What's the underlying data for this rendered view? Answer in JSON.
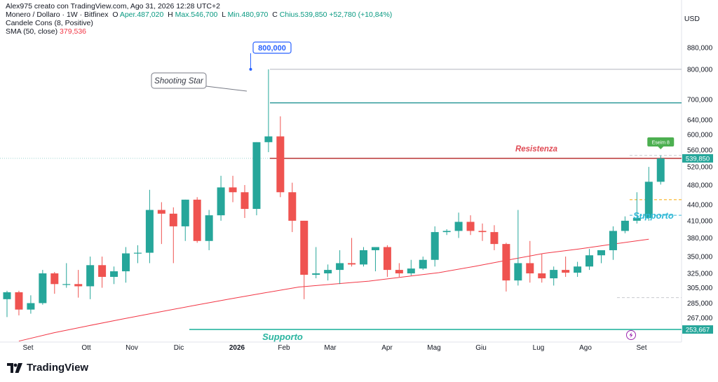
{
  "header": {
    "author_line": "Alex975 creato con TradingView.com, Ago 31, 2026 12:28 UTC+2",
    "symbol": "Monero / Dollaro · 1W · Bitfinex",
    "o_label": "O",
    "o_value": "Aper.487,020",
    "h_label": "H",
    "h_value": "Max.546,700",
    "l_label": "L",
    "l_value": "Min.480,970",
    "c_label": "C",
    "c_value": "Chius.539,850",
    "change": "+52,780 (+10,84%)",
    "indicator1": "Candele Cons (8, Positive)",
    "indicator2_label": "SMA (50, close)",
    "indicator2_value": "379,536"
  },
  "currency": "USD",
  "watermark": "TradingView",
  "colors": {
    "up": "#26a69a",
    "down": "#ef5350",
    "sma": "#f23645",
    "support": "#2ab5a0",
    "resistance": "#b22222",
    "annotation_blue": "#2962ff"
  },
  "chart_data": {
    "type": "candlestick",
    "scale": "log",
    "ylim": [
      240,
      960
    ],
    "y_ticks": [
      880000,
      800000,
      700000,
      640000,
      600000,
      560000,
      520000,
      480000,
      440000,
      410000,
      380000,
      350000,
      325000,
      305000,
      285000,
      267000
    ],
    "y_tick_labels": [
      "880,000",
      "800,000",
      "700,000",
      "640,000",
      "600,000",
      "560,000",
      "520,000",
      "480,000",
      "440,000",
      "410,000",
      "380,000",
      "350,000",
      "325,000",
      "305,000",
      "285,000",
      "267,000"
    ],
    "x_labels": [
      "Set",
      "Ott",
      "Nov",
      "Dic",
      "2026",
      "Feb",
      "Mar",
      "Apr",
      "Mag",
      "Giu",
      "Lug",
      "Ago",
      "Set"
    ],
    "candles": [
      {
        "o": 290,
        "h": 301,
        "l": 268,
        "c": 299
      },
      {
        "o": 299,
        "h": 301,
        "l": 270,
        "c": 277
      },
      {
        "o": 277,
        "h": 295,
        "l": 272,
        "c": 285
      },
      {
        "o": 285,
        "h": 330,
        "l": 283,
        "c": 325
      },
      {
        "o": 325,
        "h": 327,
        "l": 297,
        "c": 310
      },
      {
        "o": 310,
        "h": 340,
        "l": 305,
        "c": 310
      },
      {
        "o": 310,
        "h": 330,
        "l": 292,
        "c": 307
      },
      {
        "o": 307,
        "h": 350,
        "l": 290,
        "c": 337
      },
      {
        "o": 337,
        "h": 350,
        "l": 305,
        "c": 320
      },
      {
        "o": 320,
        "h": 335,
        "l": 310,
        "c": 328
      },
      {
        "o": 328,
        "h": 365,
        "l": 312,
        "c": 355
      },
      {
        "o": 355,
        "h": 368,
        "l": 340,
        "c": 356
      },
      {
        "o": 356,
        "h": 470,
        "l": 340,
        "c": 430
      },
      {
        "o": 430,
        "h": 445,
        "l": 370,
        "c": 423
      },
      {
        "o": 423,
        "h": 435,
        "l": 340,
        "c": 400
      },
      {
        "o": 400,
        "h": 450,
        "l": 375,
        "c": 450
      },
      {
        "o": 450,
        "h": 455,
        "l": 372,
        "c": 375
      },
      {
        "o": 375,
        "h": 430,
        "l": 360,
        "c": 420
      },
      {
        "o": 420,
        "h": 500,
        "l": 410,
        "c": 475
      },
      {
        "o": 475,
        "h": 500,
        "l": 445,
        "c": 465
      },
      {
        "o": 465,
        "h": 480,
        "l": 415,
        "c": 432
      },
      {
        "o": 432,
        "h": 580,
        "l": 420,
        "c": 580
      },
      {
        "o": 580,
        "h": 800,
        "l": 555,
        "c": 595
      },
      {
        "o": 595,
        "h": 650,
        "l": 455,
        "c": 465
      },
      {
        "o": 465,
        "h": 485,
        "l": 390,
        "c": 410
      },
      {
        "o": 410,
        "h": 410,
        "l": 290,
        "c": 323
      },
      {
        "o": 323,
        "h": 365,
        "l": 318,
        "c": 325
      },
      {
        "o": 325,
        "h": 338,
        "l": 315,
        "c": 330
      },
      {
        "o": 330,
        "h": 360,
        "l": 310,
        "c": 340
      },
      {
        "o": 340,
        "h": 380,
        "l": 335,
        "c": 338
      },
      {
        "o": 338,
        "h": 365,
        "l": 335,
        "c": 360
      },
      {
        "o": 360,
        "h": 362,
        "l": 328,
        "c": 365
      },
      {
        "o": 365,
        "h": 368,
        "l": 320,
        "c": 330
      },
      {
        "o": 330,
        "h": 340,
        "l": 320,
        "c": 325
      },
      {
        "o": 325,
        "h": 345,
        "l": 322,
        "c": 332
      },
      {
        "o": 332,
        "h": 350,
        "l": 330,
        "c": 345
      },
      {
        "o": 345,
        "h": 400,
        "l": 335,
        "c": 390
      },
      {
        "o": 390,
        "h": 395,
        "l": 385,
        "c": 392
      },
      {
        "o": 392,
        "h": 425,
        "l": 380,
        "c": 408
      },
      {
        "o": 408,
        "h": 420,
        "l": 385,
        "c": 392
      },
      {
        "o": 392,
        "h": 405,
        "l": 375,
        "c": 390
      },
      {
        "o": 390,
        "h": 402,
        "l": 360,
        "c": 370
      },
      {
        "o": 370,
        "h": 372,
        "l": 300,
        "c": 315
      },
      {
        "o": 315,
        "h": 430,
        "l": 308,
        "c": 340
      },
      {
        "o": 340,
        "h": 375,
        "l": 312,
        "c": 325
      },
      {
        "o": 325,
        "h": 355,
        "l": 312,
        "c": 318
      },
      {
        "o": 318,
        "h": 335,
        "l": 308,
        "c": 330
      },
      {
        "o": 330,
        "h": 350,
        "l": 320,
        "c": 326
      },
      {
        "o": 326,
        "h": 342,
        "l": 320,
        "c": 335
      },
      {
        "o": 335,
        "h": 362,
        "l": 330,
        "c": 352
      },
      {
        "o": 352,
        "h": 360,
        "l": 340,
        "c": 360
      },
      {
        "o": 360,
        "h": 400,
        "l": 345,
        "c": 392
      },
      {
        "o": 392,
        "h": 418,
        "l": 388,
        "c": 410
      },
      {
        "o": 410,
        "h": 465,
        "l": 405,
        "c": 415
      },
      {
        "o": 415,
        "h": 520,
        "l": 410,
        "c": 487
      },
      {
        "o": 487,
        "h": 547,
        "l": 481,
        "c": 540
      }
    ],
    "sma_50": {
      "start_candle": 1,
      "values": [
        241,
        250,
        258,
        266,
        274,
        282,
        290,
        298,
        306,
        310,
        314,
        320,
        326,
        335,
        345,
        355,
        362,
        370,
        378
      ]
    },
    "price_label": "539,850",
    "support_label_value": "253,667",
    "annotations": {
      "peak_label": "800,000",
      "shooting_star": "Shooting Star",
      "resistance_text": "Resistenza",
      "support_text_upper": "Supporto",
      "support_text_lower": "Supporto",
      "signal_badge": "Eseim 8"
    },
    "levels": {
      "gray_line": 800,
      "teal_line": 690,
      "resistance": 540,
      "support_upper": 420,
      "orange_dashed": 450,
      "lower_dashed": 292,
      "support_lower": 253.667
    }
  }
}
